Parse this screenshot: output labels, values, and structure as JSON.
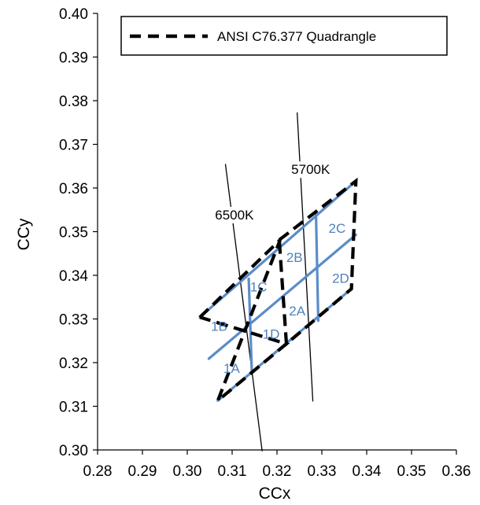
{
  "chart_data": {
    "type": "line",
    "xlabel": "CCx",
    "ylabel": "CCy",
    "xlim": [
      0.28,
      0.36
    ],
    "ylim": [
      0.3,
      0.4
    ],
    "x_ticks": [
      "0.28",
      "0.29",
      "0.30",
      "0.31",
      "0.32",
      "0.33",
      "0.34",
      "0.35",
      "0.36"
    ],
    "y_ticks": [
      "0.30",
      "0.31",
      "0.32",
      "0.33",
      "0.34",
      "0.35",
      "0.36",
      "0.37",
      "0.38",
      "0.39",
      "0.40"
    ],
    "grid": false,
    "legend": {
      "position": "top-right",
      "entries": [
        "ANSI  C76.377 Quadrangle"
      ]
    },
    "colors": {
      "quad": "#000000",
      "bins": "#5b8cc8",
      "isotherm": "#000000",
      "bin_label": "#4f81bd"
    },
    "series": [
      {
        "name": "ANSI  C76.377 Quadrangle",
        "style": "dashed",
        "segments": [
          [
            [
              0.3028,
              0.3304
            ],
            [
              0.3207,
              0.3481
            ],
            [
              0.3068,
              0.3113
            ],
            [
              0.3221,
              0.3243
            ],
            [
              0.3028,
              0.3304
            ]
          ],
          [
            [
              0.3205,
              0.3481
            ],
            [
              0.3376,
              0.3616
            ],
            [
              0.3366,
              0.3369
            ],
            [
              0.3221,
              0.3243
            ],
            [
              0.3205,
              0.3481
            ]
          ]
        ]
      }
    ],
    "bins": [
      {
        "x": [
          0.3028,
          0.3376
        ],
        "y": [
          0.3304,
          0.3616
        ]
      },
      {
        "x": [
          0.3048,
          0.3376
        ],
        "y": [
          0.3209,
          0.3493
        ]
      },
      {
        "x": [
          0.3068,
          0.3366
        ],
        "y": [
          0.3113,
          0.3369
        ]
      },
      {
        "x": [
          0.3137,
          0.3144
        ],
        "y": [
          0.3392,
          0.3177
        ]
      },
      {
        "x": [
          0.3287,
          0.3292
        ],
        "y": [
          0.3539,
          0.3296
        ]
      }
    ],
    "isotherms": [
      {
        "label": "6500K",
        "x": [
          0.3085,
          0.3167
        ],
        "y": [
          0.3655,
          0.2997
        ],
        "label_at": [
          0.3105,
          0.3528
        ]
      },
      {
        "label": "5700K",
        "x": [
          0.3245,
          0.328
        ],
        "y": [
          0.3773,
          0.3111
        ],
        "label_at": [
          0.3275,
          0.3632
        ]
      }
    ],
    "bin_labels": [
      {
        "text": "1A",
        "x": 0.3099,
        "y": 0.3187
      },
      {
        "text": "1B",
        "x": 0.3071,
        "y": 0.3284
      },
      {
        "text": "1C",
        "x": 0.3159,
        "y": 0.3374
      },
      {
        "text": "1D",
        "x": 0.3187,
        "y": 0.3266
      },
      {
        "text": "2A",
        "x": 0.3245,
        "y": 0.3319
      },
      {
        "text": "2B",
        "x": 0.3239,
        "y": 0.3441
      },
      {
        "text": "2C",
        "x": 0.3334,
        "y": 0.3508
      },
      {
        "text": "2D",
        "x": 0.3342,
        "y": 0.3394
      }
    ]
  }
}
